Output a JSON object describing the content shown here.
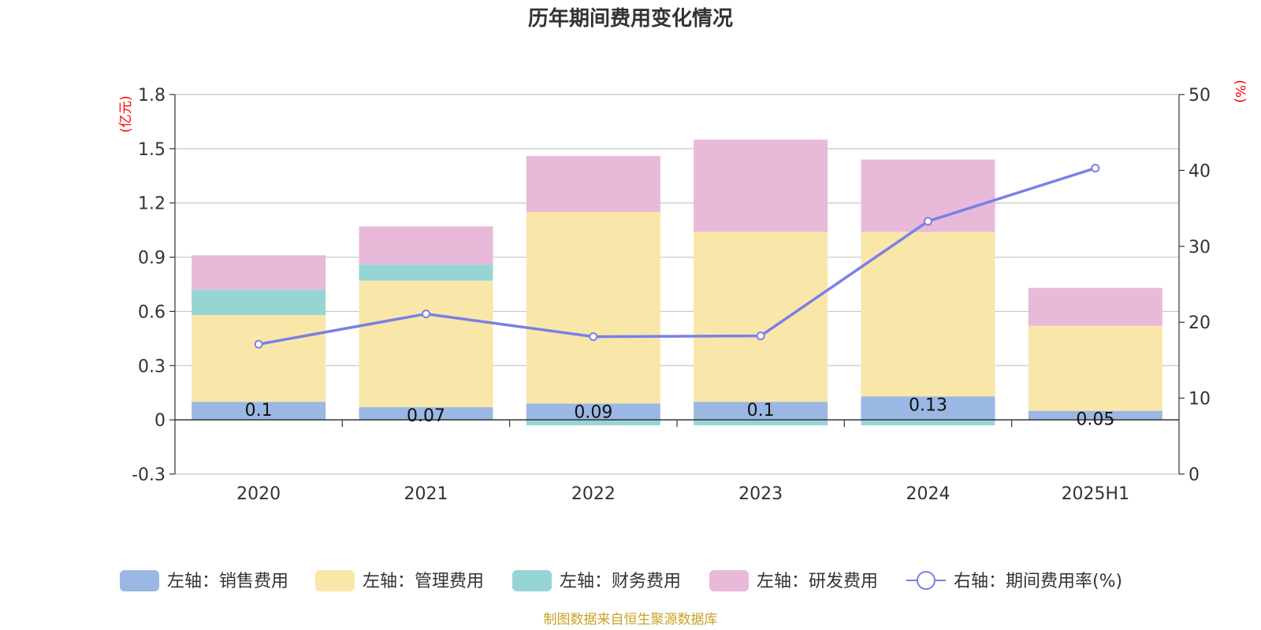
{
  "chart_data": {
    "type": "bar",
    "title": "历年期间费用变化情况",
    "categories": [
      "2020",
      "2021",
      "2022",
      "2023",
      "2024",
      "2025H1"
    ],
    "y_left": {
      "unit": "(亿元)",
      "ticks": [
        "1.8",
        "1.5",
        "1.2",
        "0.9",
        "0.6",
        "0.3",
        "0",
        "-0.3"
      ],
      "range": [
        -0.3,
        1.8
      ]
    },
    "y_right": {
      "unit": "(%)",
      "ticks": [
        "50",
        "40",
        "30",
        "20",
        "10",
        "0"
      ],
      "range": [
        0,
        50
      ]
    },
    "series": [
      {
        "name": "左轴：销售费用",
        "kind": "bar",
        "color": "#9bb7e3",
        "values": [
          0.1,
          0.07,
          0.09,
          0.1,
          0.13,
          0.05
        ],
        "labels": [
          "0.1",
          "0.07",
          "0.09",
          "0.1",
          "0.13",
          "0.05"
        ]
      },
      {
        "name": "左轴：管理费用",
        "kind": "bar",
        "color": "#f8e7a9",
        "values": [
          0.48,
          0.7,
          1.06,
          0.94,
          0.91,
          0.47
        ]
      },
      {
        "name": "左轴：财务费用",
        "kind": "bar",
        "color": "#97d5d5",
        "values": [
          0.14,
          0.09,
          -0.03,
          -0.03,
          -0.03,
          0
        ]
      },
      {
        "name": "左轴：研发费用",
        "kind": "bar",
        "color": "#e8b9d9",
        "values": [
          0.19,
          0.21,
          0.31,
          0.51,
          0.4,
          0.21
        ]
      },
      {
        "name": "右轴：期间费用率(%)",
        "kind": "line",
        "color": "#7b7fe6",
        "values": [
          17.1,
          21.1,
          18.1,
          18.2,
          33.3,
          40.3
        ]
      }
    ],
    "grid": true,
    "legend_position": "bottom"
  },
  "source": "制图数据来自恒生聚源数据库"
}
